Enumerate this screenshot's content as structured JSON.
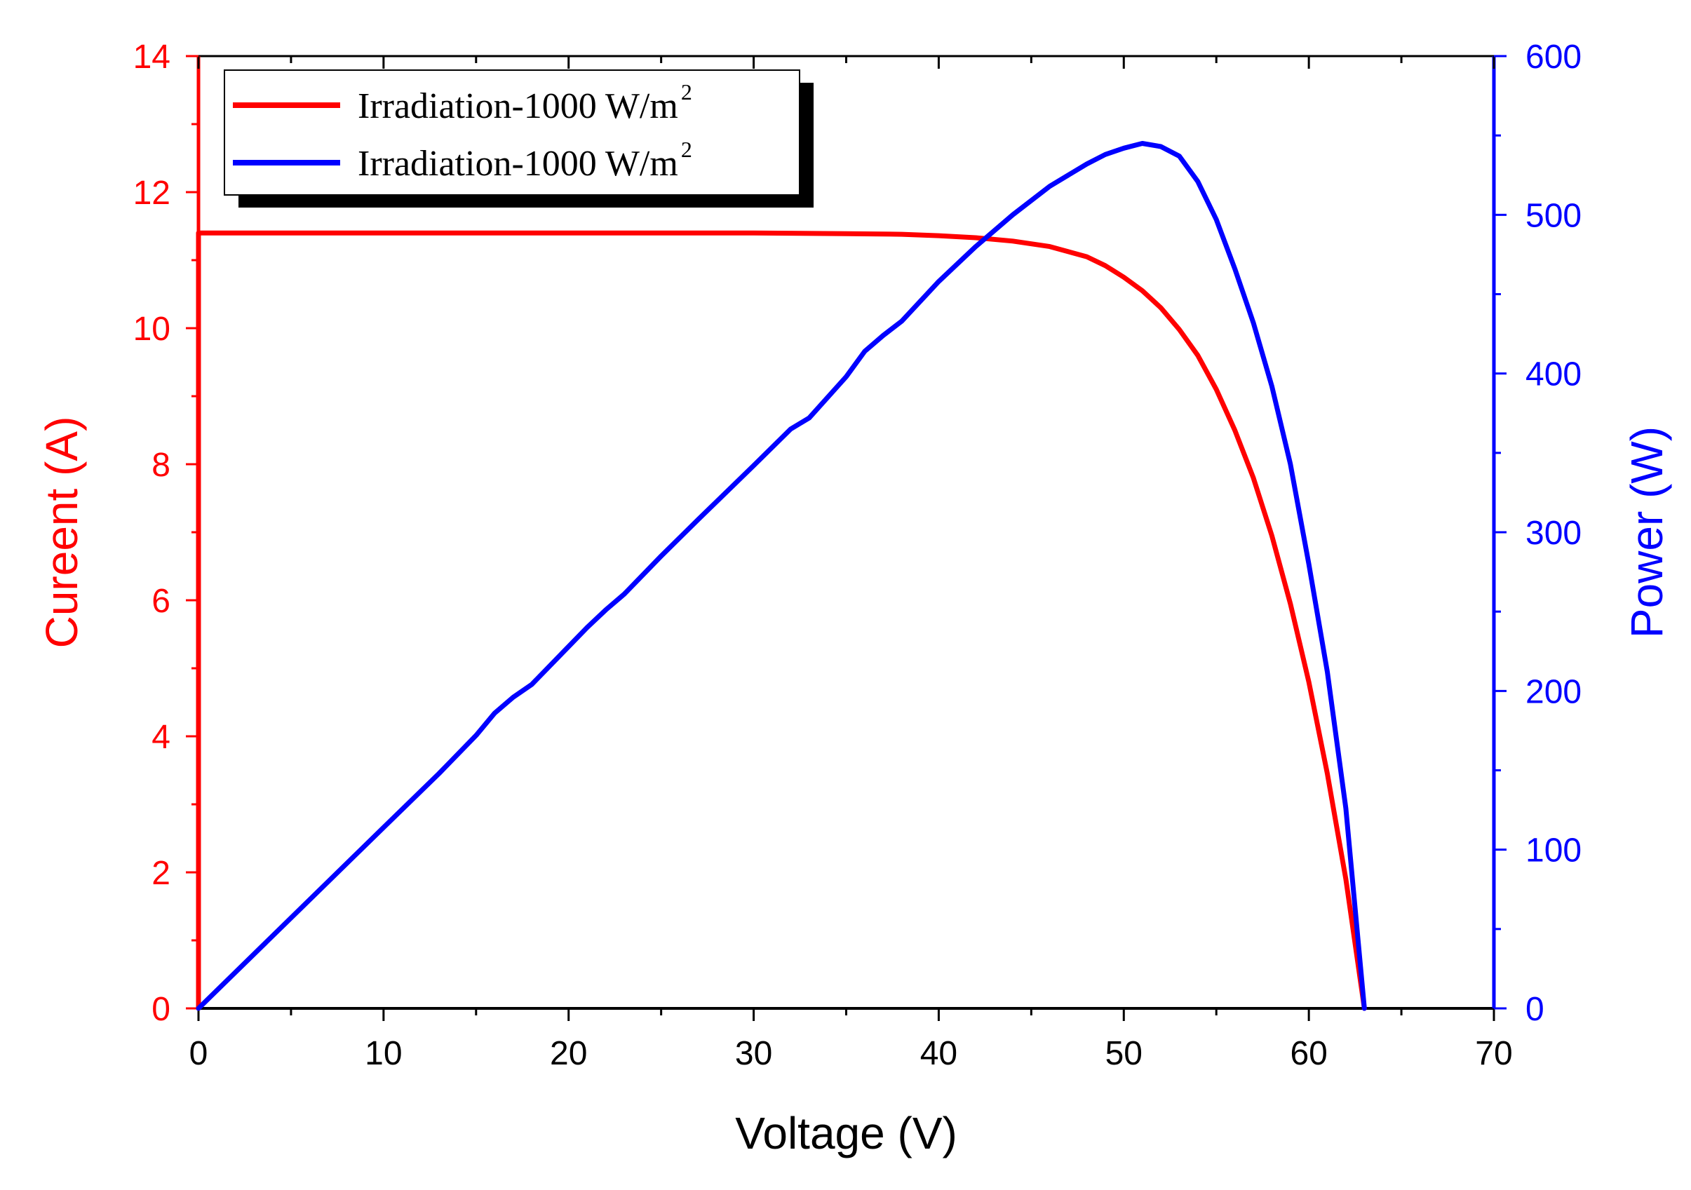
{
  "chart_data": {
    "type": "line",
    "xlabel": "Voltage (V)",
    "ylabel_left": "Cureent (A)",
    "ylabel_right": "Power (W)",
    "xlim": [
      0,
      70
    ],
    "ylim_left": [
      0,
      14
    ],
    "ylim_right": [
      0,
      600
    ],
    "x_ticks": [
      "0",
      "10",
      "20",
      "30",
      "40",
      "50",
      "60",
      "70"
    ],
    "y_left_ticks": [
      "0",
      "2",
      "4",
      "6",
      "8",
      "10",
      "12",
      "14"
    ],
    "y_right_ticks": [
      "0",
      "100",
      "200",
      "300",
      "400",
      "500",
      "600"
    ],
    "colors": {
      "left_axis": "#ff0000",
      "right_axis": "#0000ff",
      "frame": "#000000"
    },
    "legend": {
      "placement": "top-left",
      "entries": [
        {
          "text": "Irradiation-1000 W/m",
          "sup": "2",
          "color": "#ff0000"
        },
        {
          "text": "Irradiation-1000 W/m",
          "sup": "2",
          "color": "#0000ff"
        }
      ]
    },
    "series": [
      {
        "name": "Current",
        "axis": "left",
        "color": "#ff0000",
        "x": [
          0,
          0,
          10,
          20,
          30,
          35,
          38,
          40,
          42,
          44,
          46,
          48,
          49,
          50,
          51,
          52,
          53,
          54,
          55,
          56,
          57,
          58,
          59,
          60,
          61,
          62,
          63
        ],
        "y": [
          0,
          11.4,
          11.4,
          11.4,
          11.4,
          11.39,
          11.38,
          11.36,
          11.33,
          11.28,
          11.2,
          11.05,
          10.92,
          10.75,
          10.55,
          10.3,
          9.98,
          9.6,
          9.1,
          8.5,
          7.8,
          6.95,
          5.95,
          4.8,
          3.45,
          1.9,
          0
        ]
      },
      {
        "name": "Power",
        "axis": "right",
        "color": "#0000ff",
        "x": [
          0,
          5,
          10,
          13,
          15,
          16,
          17,
          18,
          20,
          21,
          22,
          23,
          25,
          27,
          30,
          32,
          33,
          35,
          36,
          37,
          38,
          40,
          42,
          44,
          46,
          48,
          49,
          50,
          51,
          52,
          53,
          54,
          55,
          56,
          57,
          58,
          59,
          60,
          61,
          62,
          63
        ],
        "y": [
          0,
          57,
          114,
          148,
          172,
          186,
          196,
          204,
          228,
          240,
          251,
          261,
          285,
          308,
          342,
          365,
          372,
          398,
          414,
          424,
          433,
          458,
          480,
          500,
          518,
          532,
          538,
          542,
          545,
          543,
          537,
          521,
          497,
          466,
          432,
          392,
          343,
          280,
          212,
          126,
          0
        ]
      }
    ]
  }
}
